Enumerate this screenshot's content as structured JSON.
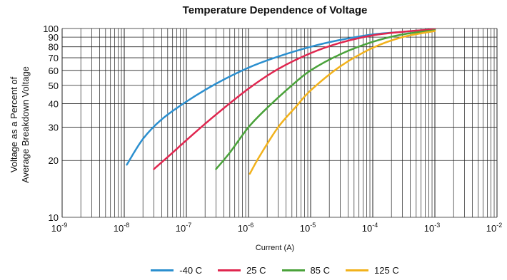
{
  "chart_data": {
    "type": "line",
    "title": "Temperature Dependence of Voltage",
    "xlabel": "Current (A)",
    "ylabel_line1": "Voltage as a Percent  of",
    "ylabel_line2": "Average Breakdown Voltage",
    "x_scale": "log",
    "y_scale": "log",
    "xlim": [
      1e-09,
      0.01
    ],
    "ylim": [
      10,
      100
    ],
    "x_ticks": [
      {
        "base": "10",
        "exp": "-9",
        "value": 1e-09
      },
      {
        "base": "10",
        "exp": "-8",
        "value": 1e-08
      },
      {
        "base": "10",
        "exp": "-7",
        "value": 1e-07
      },
      {
        "base": "10",
        "exp": "-6",
        "value": 1e-06
      },
      {
        "base": "10",
        "exp": "-5",
        "value": 1e-05
      },
      {
        "base": "10",
        "exp": "-4",
        "value": 0.0001
      },
      {
        "base": "10",
        "exp": "-3",
        "value": 0.001
      },
      {
        "base": "10",
        "exp": "-2",
        "value": 0.01
      }
    ],
    "y_ticks": [
      "10",
      "20",
      "30",
      "40",
      "50",
      "60",
      "70",
      "80",
      "90",
      "100"
    ],
    "y_tick_values": [
      10,
      20,
      30,
      40,
      50,
      60,
      70,
      80,
      90,
      100
    ],
    "grid": true,
    "legend_position": "bottom",
    "series": [
      {
        "name": "-40 C",
        "color": "#2b8fcf",
        "x": [
          1.1e-08,
          2e-08,
          4e-08,
          1e-07,
          3e-07,
          1e-06,
          3e-06,
          1e-05,
          3e-05,
          0.0001,
          0.0003,
          0.001
        ],
        "y": [
          19,
          26,
          33,
          41,
          51,
          62,
          71,
          80,
          87,
          93,
          96,
          99
        ]
      },
      {
        "name": "25 C",
        "color": "#e0264f",
        "x": [
          3e-08,
          6e-08,
          1.2e-07,
          3e-07,
          1e-06,
          3e-06,
          1e-05,
          3e-05,
          0.0001,
          0.0003,
          0.001
        ],
        "y": [
          18,
          22,
          27,
          35,
          48,
          61,
          74,
          84,
          92,
          96,
          99
        ]
      },
      {
        "name": "85 C",
        "color": "#4aa23a",
        "x": [
          3e-07,
          5e-07,
          1e-06,
          2e-06,
          5e-06,
          1e-05,
          3e-05,
          0.0001,
          0.0003,
          0.001
        ],
        "y": [
          18,
          22,
          30,
          38,
          50,
          60,
          73,
          85,
          93,
          98
        ]
      },
      {
        "name": "125 C",
        "color": "#f2b21c",
        "x": [
          1.05e-06,
          1.5e-06,
          3e-06,
          6e-06,
          1e-05,
          3e-05,
          0.0001,
          0.0003,
          0.001
        ],
        "y": [
          17,
          21,
          30,
          39,
          47,
          63,
          79,
          90,
          97
        ]
      }
    ]
  }
}
